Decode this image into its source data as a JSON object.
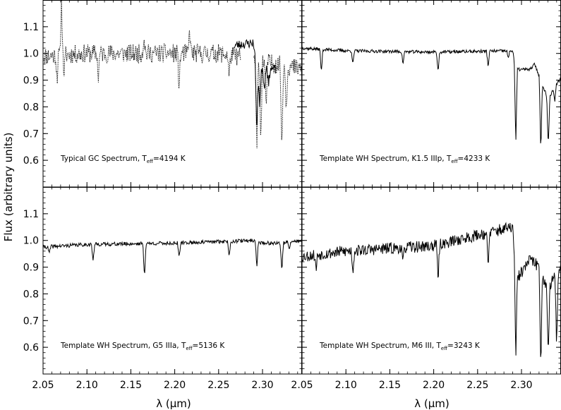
{
  "ylabel": "Flux (arbitrary units)",
  "xlabel": "λ (μm)",
  "chart_data": [
    {
      "type": "line",
      "panel": "top-left",
      "annotation": {
        "pre": "Typical GC Spectrum, T",
        "sub": "eff",
        "post": "=4194 K"
      },
      "xlim": [
        2.05,
        2.345
      ],
      "ylim": [
        0.5,
        1.2
      ],
      "x_ticks": [
        "2.05",
        "2.10",
        "2.15",
        "2.20",
        "2.25",
        "2.30"
      ],
      "y_ticks": [
        "0.6",
        "0.7",
        "0.8",
        "0.9",
        "1.0",
        "1.1"
      ],
      "series": [
        {
          "style": "dotted",
          "seed": 11,
          "base": [
            [
              2.05,
              0.99
            ],
            [
              2.1,
              1.0
            ],
            [
              2.15,
              1.0
            ],
            [
              2.2,
              1.0
            ],
            [
              2.25,
              1.0
            ],
            [
              2.27,
              0.99
            ],
            [
              2.345,
              0.94
            ]
          ],
          "noise": 0.035,
          "lines": [
            [
              2.066,
              0.91
            ],
            [
              2.071,
              1.2
            ],
            [
              2.074,
              0.93
            ],
            [
              2.113,
              0.91
            ],
            [
              2.165,
              1.07
            ],
            [
              2.205,
              0.87
            ],
            [
              2.217,
              1.09
            ],
            [
              2.262,
              0.91
            ],
            [
              2.2935,
              0.62
            ],
            [
              2.298,
              0.66
            ],
            [
              2.304,
              0.78
            ],
            [
              2.322,
              0.63
            ],
            [
              2.327,
              0.79
            ]
          ],
          "segments": [
            [
              2.05,
              2.275
            ],
            [
              2.29,
              2.345
            ]
          ]
        },
        {
          "style": "solid",
          "seed": 23,
          "base": [
            [
              2.268,
              1.03
            ],
            [
              2.29,
              1.04
            ],
            [
              2.2935,
              0.9
            ],
            [
              2.3,
              0.95
            ],
            [
              2.315,
              0.94
            ]
          ],
          "noise": 0.018,
          "lines": [
            [
              2.2935,
              0.69
            ],
            [
              2.297,
              0.8
            ],
            [
              2.302,
              0.86
            ],
            [
              2.307,
              0.88
            ]
          ],
          "segments": [
            [
              2.268,
              2.315
            ]
          ]
        }
      ]
    },
    {
      "type": "line",
      "panel": "top-right",
      "annotation": {
        "pre": "Template WH Spectrum, K1.5 IIIp, T",
        "sub": "eff",
        "post": "=4233 K"
      },
      "xlim": [
        2.05,
        2.345
      ],
      "ylim": [
        0.5,
        1.2
      ],
      "x_ticks": [
        "2.05",
        "2.10",
        "2.15",
        "2.20",
        "2.25",
        "2.30"
      ],
      "y_ticks": [
        "0.6",
        "0.7",
        "0.8",
        "0.9",
        "1.0",
        "1.1"
      ],
      "series": [
        {
          "style": "solid",
          "seed": 37,
          "base": [
            [
              2.05,
              1.02
            ],
            [
              2.1,
              1.01
            ],
            [
              2.2,
              1.005
            ],
            [
              2.29,
              1.01
            ],
            [
              2.2935,
              0.94
            ],
            [
              2.31,
              0.94
            ],
            [
              2.315,
              0.96
            ],
            [
              2.322,
              0.9
            ],
            [
              2.33,
              0.83
            ],
            [
              2.345,
              0.91
            ]
          ],
          "noise": 0.006,
          "lines": [
            [
              2.072,
              0.93
            ],
            [
              2.108,
              0.96
            ],
            [
              2.165,
              0.96
            ],
            [
              2.205,
              0.93
            ],
            [
              2.262,
              0.95
            ],
            [
              2.285,
              0.98
            ],
            [
              2.2935,
              0.66
            ],
            [
              2.322,
              0.63
            ],
            [
              2.3305,
              0.65
            ],
            [
              2.338,
              0.82
            ]
          ],
          "segments": [
            [
              2.05,
              2.345
            ]
          ]
        }
      ]
    },
    {
      "type": "line",
      "panel": "bottom-left",
      "annotation": {
        "pre": "Template WH Spectrum, G5 IIIa, T",
        "sub": "eff",
        "post": "=5136 K"
      },
      "xlim": [
        2.05,
        2.345
      ],
      "ylim": [
        0.5,
        1.2
      ],
      "x_ticks": [
        "2.05",
        "2.10",
        "2.15",
        "2.20",
        "2.25",
        "2.30"
      ],
      "y_ticks": [
        "0.6",
        "0.7",
        "0.8",
        "0.9",
        "1.0",
        "1.1"
      ],
      "series": [
        {
          "style": "solid",
          "seed": 41,
          "base": [
            [
              2.05,
              0.975
            ],
            [
              2.1,
              0.985
            ],
            [
              2.2,
              0.99
            ],
            [
              2.29,
              1.0
            ],
            [
              2.3,
              0.99
            ],
            [
              2.32,
              0.99
            ],
            [
              2.345,
              1.0
            ]
          ],
          "noise": 0.007,
          "lines": [
            [
              2.057,
              0.95
            ],
            [
              2.107,
              0.92
            ],
            [
              2.1655,
              0.86
            ],
            [
              2.205,
              0.93
            ],
            [
              2.262,
              0.94
            ],
            [
              2.2935,
              0.9
            ],
            [
              2.322,
              0.88
            ],
            [
              2.3305,
              0.96
            ]
          ],
          "segments": [
            [
              2.05,
              2.345
            ]
          ]
        }
      ]
    },
    {
      "type": "line",
      "panel": "bottom-right",
      "annotation": {
        "pre": "Template WH Spectrum, M6 III, T",
        "sub": "eff",
        "post": "=3243 K"
      },
      "xlim": [
        2.05,
        2.345
      ],
      "ylim": [
        0.5,
        1.2
      ],
      "x_ticks": [
        "2.05",
        "2.10",
        "2.15",
        "2.20",
        "2.25",
        "2.30"
      ],
      "y_ticks": [
        "0.6",
        "0.7",
        "0.8",
        "0.9",
        "1.0",
        "1.1"
      ],
      "series": [
        {
          "style": "solid",
          "seed": 53,
          "base": [
            [
              2.05,
              0.94
            ],
            [
              2.1,
              0.96
            ],
            [
              2.2,
              0.98
            ],
            [
              2.25,
              1.02
            ],
            [
              2.29,
              1.05
            ],
            [
              2.2935,
              0.85
            ],
            [
              2.3,
              0.88
            ],
            [
              2.31,
              0.93
            ],
            [
              2.32,
              0.9
            ],
            [
              2.33,
              0.82
            ],
            [
              2.345,
              0.9
            ]
          ],
          "noise": 0.022,
          "lines": [
            [
              2.066,
              0.89
            ],
            [
              2.108,
              0.88
            ],
            [
              2.165,
              0.91
            ],
            [
              2.205,
              0.85
            ],
            [
              2.262,
              0.89
            ],
            [
              2.2935,
              0.55
            ],
            [
              2.322,
              0.52
            ],
            [
              2.3305,
              0.55
            ],
            [
              2.34,
              0.6
            ]
          ],
          "segments": [
            [
              2.05,
              2.345
            ]
          ]
        }
      ]
    }
  ]
}
